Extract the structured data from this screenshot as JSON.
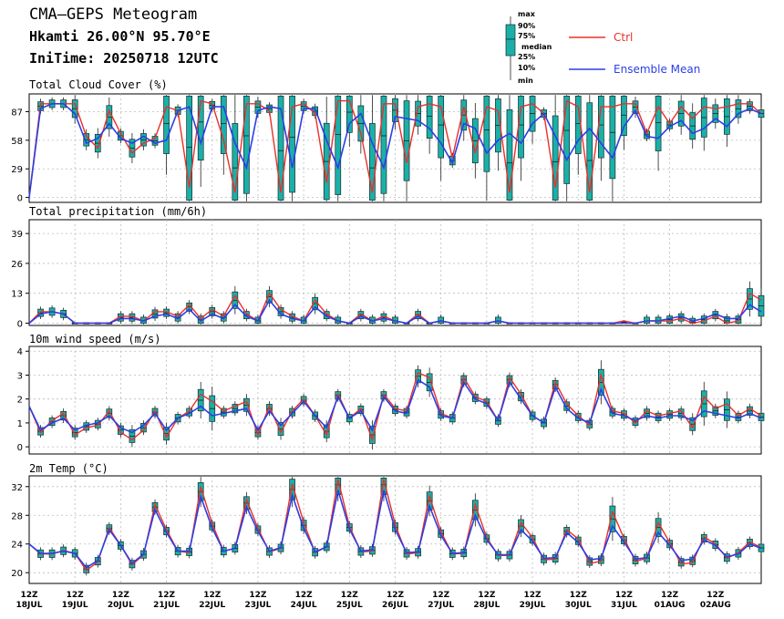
{
  "header": {
    "title": "CMA—GEPS Meteogram",
    "location": "Hkamti 26.00°N 95.70°E",
    "init_time": "IniTime: 20250718 12UTC"
  },
  "legend": {
    "box_labels": [
      "max",
      "90%",
      "75%",
      "median",
      "25%",
      "10%",
      "min"
    ],
    "ctrl_label": "Ctrl",
    "mean_label": "Ensemble Mean"
  },
  "colors": {
    "ctrl": "#e8302a",
    "mean": "#2b3fe6",
    "box": "#1ab0a8",
    "grid": "#bbbbbb"
  },
  "chart_data": {
    "x_ticks": {
      "top": [
        "12Z",
        "12Z",
        "12Z",
        "12Z",
        "12Z",
        "12Z",
        "12Z",
        "12Z",
        "12Z",
        "12Z",
        "12Z",
        "12Z",
        "12Z",
        "12Z",
        "12Z",
        "12Z"
      ],
      "bottom": [
        "18JUL",
        "19JUL",
        "20JUL",
        "21JUL",
        "22JUL",
        "23JUL",
        "24JUL",
        "25JUL",
        "26JUL",
        "27JUL",
        "28JUL",
        "29JUL",
        "30JUL",
        "31JUL",
        "01AUG",
        "02AUG"
      ]
    },
    "panels": [
      {
        "key": "cloud",
        "type": "box",
        "title": "Total Cloud Cover (%)",
        "yticks": [
          0,
          29,
          58,
          87
        ],
        "ylim": [
          -5,
          105
        ],
        "ctrl": [
          0,
          95,
          95,
          95,
          95,
          62,
          50,
          88,
          65,
          45,
          55,
          60,
          92,
          88,
          10,
          98,
          95,
          58,
          5,
          95,
          95,
          88,
          5,
          92,
          95,
          85,
          15,
          98,
          98,
          65,
          5,
          95,
          95,
          35,
          92,
          95,
          92,
          40,
          92,
          45,
          92,
          88,
          5,
          92,
          95,
          85,
          10,
          98,
          92,
          5,
          92,
          92,
          95,
          95,
          65,
          92,
          75,
          92,
          80,
          92,
          90,
          92,
          95,
          95,
          85
        ],
        "mean": [
          0,
          90,
          95,
          95,
          85,
          55,
          60,
          75,
          60,
          55,
          62,
          55,
          58,
          88,
          92,
          55,
          92,
          92,
          55,
          30,
          88,
          92,
          90,
          30,
          90,
          90,
          58,
          30,
          75,
          85,
          55,
          30,
          82,
          80,
          78,
          70,
          55,
          35,
          75,
          70,
          45,
          58,
          65,
          55,
          75,
          85,
          62,
          38,
          58,
          70,
          55,
          40,
          72,
          88,
          62,
          60,
          72,
          78,
          65,
          70,
          80,
          72,
          85,
          90,
          85
        ]
      },
      {
        "key": "precip",
        "type": "box",
        "title": "Total precipitation (mm/6h)",
        "yticks": [
          0,
          13,
          26,
          39
        ],
        "ylim": [
          -1,
          45
        ],
        "ctrl": [
          0,
          5,
          5,
          4,
          0,
          0,
          0,
          0,
          3,
          3,
          1,
          5,
          5,
          3,
          8,
          2,
          6,
          3,
          12,
          4,
          1,
          13,
          6,
          3,
          1,
          10,
          4,
          1,
          0,
          4,
          1,
          3,
          1,
          0,
          4,
          0,
          1,
          0,
          0,
          0,
          0,
          1,
          0,
          0,
          0,
          0,
          0,
          0,
          0,
          0,
          0,
          0,
          1,
          0,
          1,
          1,
          1,
          2,
          0,
          1,
          3,
          0,
          1,
          13,
          10
        ],
        "mean": [
          0,
          4,
          5,
          4,
          0,
          0,
          0,
          0,
          2,
          2,
          1,
          3,
          4,
          2,
          6,
          1,
          4,
          2,
          8,
          3,
          1,
          10,
          4,
          2,
          1,
          7,
          3,
          1,
          0,
          3,
          1,
          2,
          1,
          0,
          3,
          0,
          1,
          0,
          0,
          0,
          0,
          1,
          0,
          0,
          0,
          0,
          0,
          0,
          0,
          0,
          0,
          0,
          0,
          0,
          1,
          1,
          2,
          3,
          1,
          2,
          4,
          2,
          2,
          8,
          5
        ]
      },
      {
        "key": "wind",
        "type": "box",
        "title": "10m wind speed (m/s)",
        "yticks": [
          0,
          1,
          2,
          3,
          4
        ],
        "ylim": [
          -0.3,
          4.2
        ],
        "ctrl": [
          1.7,
          0.6,
          1.1,
          1.4,
          0.5,
          0.8,
          0.9,
          1.5,
          0.6,
          0.3,
          0.7,
          1.5,
          0.4,
          1.2,
          1.5,
          2.2,
          1.9,
          1.5,
          1.7,
          1.9,
          0.5,
          1.7,
          0.6,
          1.5,
          2.0,
          1.3,
          0.5,
          2.2,
          1.2,
          1.6,
          0.3,
          2.2,
          1.6,
          1.5,
          3.1,
          2.9,
          1.4,
          1.2,
          2.9,
          2.1,
          1.9,
          1.1,
          2.9,
          2.2,
          1.3,
          1.0,
          2.7,
          1.8,
          1.3,
          0.9,
          3.0,
          1.5,
          1.4,
          1.0,
          1.5,
          1.3,
          1.4,
          1.5,
          0.8,
          2.1,
          1.6,
          1.8,
          1.3,
          1.6,
          1.3
        ],
        "mean": [
          1.7,
          0.7,
          1.0,
          1.2,
          0.7,
          0.9,
          1.0,
          1.3,
          0.8,
          0.6,
          0.9,
          1.4,
          0.7,
          1.2,
          1.4,
          1.7,
          1.3,
          1.4,
          1.5,
          1.6,
          0.7,
          1.5,
          0.9,
          1.4,
          1.9,
          1.3,
          0.8,
          2.1,
          1.2,
          1.5,
          0.7,
          2.1,
          1.5,
          1.4,
          2.8,
          2.5,
          1.3,
          1.2,
          2.7,
          2.0,
          1.8,
          1.1,
          2.7,
          2.0,
          1.3,
          1.0,
          2.5,
          1.6,
          1.2,
          1.0,
          2.4,
          1.4,
          1.3,
          1.1,
          1.3,
          1.2,
          1.3,
          1.3,
          1.1,
          1.5,
          1.4,
          1.3,
          1.2,
          1.4,
          1.2
        ]
      },
      {
        "key": "temp",
        "type": "box",
        "title": "2m Temp (°C)",
        "yticks": [
          20,
          24,
          28,
          32
        ],
        "ylim": [
          18.5,
          33.5
        ],
        "ctrl": [
          24,
          22.6,
          22.6,
          23.1,
          22.7,
          20.3,
          21.5,
          26.3,
          23.8,
          21.1,
          22.5,
          29.5,
          26.0,
          23.0,
          22.8,
          32.0,
          26.8,
          23.0,
          23.4,
          30.2,
          26.2,
          22.9,
          23.4,
          32.4,
          27.0,
          22.8,
          23.6,
          33.0,
          26.5,
          22.9,
          23.0,
          33.0,
          26.7,
          22.6,
          22.8,
          30.7,
          25.7,
          22.6,
          22.7,
          29.5,
          24.9,
          22.4,
          22.4,
          27.0,
          24.9,
          21.8,
          21.9,
          26.0,
          24.7,
          21.3,
          21.6,
          28.5,
          24.8,
          21.6,
          22.0,
          27.0,
          24.2,
          21.2,
          21.4,
          25.0,
          24.0,
          22.0,
          22.8,
          24.3,
          23.5
        ],
        "mean": [
          24,
          22.7,
          22.7,
          23.0,
          22.7,
          20.7,
          21.7,
          26.0,
          23.8,
          21.3,
          22.6,
          28.8,
          25.6,
          23.0,
          23.0,
          30.6,
          26.2,
          23.0,
          23.4,
          29.2,
          25.8,
          23.0,
          23.5,
          30.8,
          26.2,
          22.9,
          23.6,
          31.5,
          26.1,
          23.0,
          23.2,
          31.5,
          26.0,
          22.8,
          22.9,
          29.3,
          25.2,
          22.7,
          22.8,
          28.0,
          24.6,
          22.5,
          22.5,
          26.0,
          24.4,
          22.0,
          22.1,
          25.6,
          24.2,
          21.8,
          22.0,
          26.5,
          24.3,
          21.9,
          22.1,
          25.6,
          23.8,
          21.7,
          21.9,
          24.6,
          23.8,
          22.2,
          22.6,
          24.0,
          23.4
        ]
      }
    ]
  }
}
